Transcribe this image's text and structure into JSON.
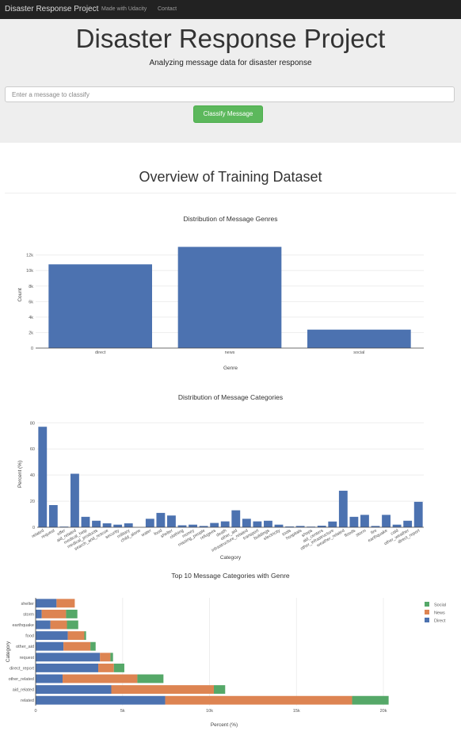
{
  "navbar": {
    "brand": "Disaster Response Project",
    "links": [
      "Made with Udacity",
      "Contact"
    ]
  },
  "header": {
    "title": "Disaster Response Project",
    "subtitle": "Analyzing message data for disaster response",
    "input_placeholder": "Enter a message to classify",
    "button_label": "Classify Message"
  },
  "main": {
    "section_title": "Overview of Training Dataset"
  },
  "chart_data": [
    {
      "type": "bar",
      "title": "Distribution of Message Genres",
      "xlabel": "Genre",
      "ylabel": "Count",
      "categories": [
        "direct",
        "news",
        "social"
      ],
      "values": [
        10800,
        13050,
        2380
      ],
      "ylim": [
        0,
        13700
      ],
      "yticks": [
        0,
        2000,
        4000,
        6000,
        8000,
        10000,
        12000
      ],
      "ytick_labels": [
        "0",
        "2k",
        "4k",
        "6k",
        "8k",
        "10k",
        "12k"
      ],
      "grid": true,
      "color": "#4c72b0"
    },
    {
      "type": "bar",
      "title": "Distribution of Message Categories",
      "xlabel": "Category",
      "ylabel": "Percent (%)",
      "categories": [
        "related",
        "request",
        "offer",
        "aid_related",
        "medical_help",
        "medical_products",
        "search_and_rescue",
        "security",
        "military",
        "child_alone",
        "water",
        "food",
        "shelter",
        "clothing",
        "money",
        "missing_people",
        "refugees",
        "death",
        "other_aid",
        "infrastructure_related",
        "transport",
        "buildings",
        "electricity",
        "tools",
        "hospitals",
        "shops",
        "aid_centers",
        "other_infrastructure",
        "weather_related",
        "floods",
        "storm",
        "fire",
        "earthquake",
        "cold",
        "other_weather",
        "direct_report"
      ],
      "values": [
        77,
        17,
        0.5,
        41,
        8,
        5,
        3,
        2,
        3,
        0,
        6.5,
        11,
        9,
        1.5,
        2,
        1,
        3.3,
        4.5,
        13,
        6.5,
        4.5,
        5,
        2,
        0.6,
        1,
        0.5,
        1.2,
        4.4,
        28,
        8,
        9.5,
        1,
        9.5,
        2,
        5,
        19.5
      ],
      "ylim": [
        0,
        82
      ],
      "yticks": [
        0,
        20,
        40,
        60,
        80
      ],
      "grid": true,
      "color": "#4c72b0"
    },
    {
      "type": "bar",
      "orientation": "horizontal",
      "stacked": true,
      "title": "Top 10 Message Categories with Genre",
      "xlabel": "Percent (%)",
      "ylabel": "Category",
      "categories": [
        "related",
        "aid_related",
        "other_related",
        "direct_report",
        "request",
        "other_aid",
        "food",
        "earthquake",
        "storm",
        "shelter"
      ],
      "series": [
        {
          "name": "Direct",
          "color": "#4c72b0",
          "values": [
            7450,
            4350,
            1550,
            3600,
            3700,
            1600,
            1850,
            850,
            350,
            1200
          ]
        },
        {
          "name": "News",
          "color": "#dd8452",
          "values": [
            10750,
            5900,
            4300,
            900,
            600,
            1550,
            950,
            950,
            1400,
            1050
          ]
        },
        {
          "name": "Social",
          "color": "#55a868",
          "values": [
            2100,
            650,
            1500,
            600,
            150,
            300,
            100,
            650,
            650,
            0
          ]
        }
      ],
      "xlim": [
        0,
        21000
      ],
      "xticks": [
        0,
        5000,
        10000,
        15000,
        20000
      ],
      "xtick_labels": [
        "0",
        "5k",
        "10k",
        "15k",
        "20k"
      ],
      "legend": "top-right",
      "grid": true
    }
  ]
}
